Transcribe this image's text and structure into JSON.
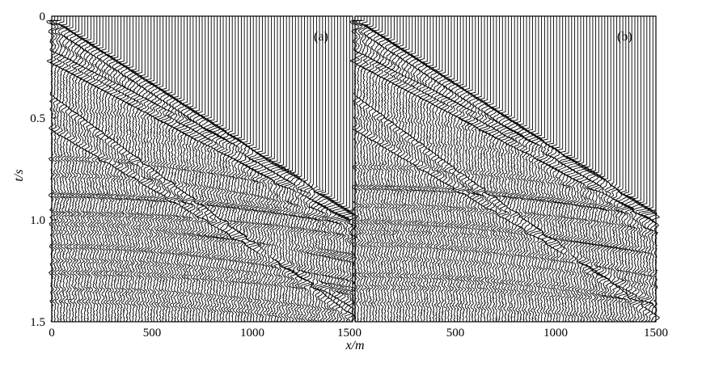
{
  "chart_data": {
    "type": "seismic_wiggle",
    "panels": [
      {
        "label": "(a)"
      },
      {
        "label": "(b)"
      }
    ],
    "xlabel": "x/m",
    "ylabel": "t/s",
    "xlim": [
      0,
      1500
    ],
    "ylim": [
      0,
      1.5
    ],
    "y_reversed": true,
    "x_ticks": [
      0,
      500,
      1000,
      1500
    ],
    "x_tick_labels": [
      "0",
      "500",
      "1000",
      "1500"
    ],
    "y_ticks": [
      0,
      0.5,
      1.0,
      1.5
    ],
    "y_tick_labels": [
      "0",
      "0.5",
      "1.0",
      "1.5"
    ],
    "colors": {
      "trace": "#000000",
      "background": "#ffffff"
    }
  }
}
